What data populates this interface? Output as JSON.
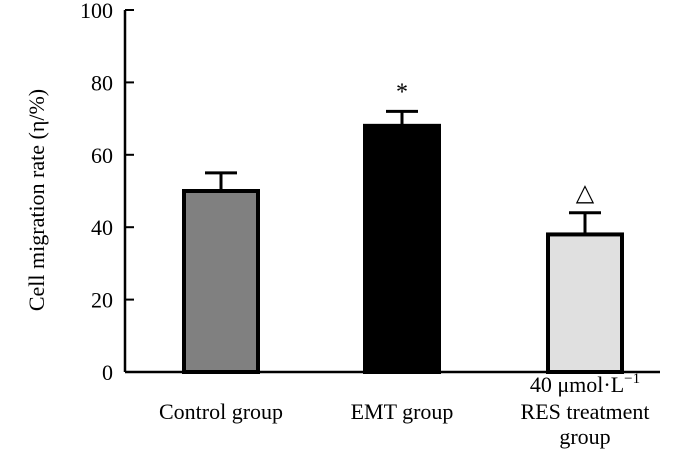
{
  "chart_data": {
    "type": "bar",
    "title": "",
    "ylabel": "Cell migration rate (η/%)",
    "xlabel": "",
    "ylim": [
      0,
      100
    ],
    "yticks": [
      0,
      20,
      40,
      60,
      80,
      100
    ],
    "categories": [
      [
        "Control group"
      ],
      [
        "EMT group"
      ],
      [
        "40 μmol·L",
        "RES treatment",
        "group"
      ]
    ],
    "unit_superscript": "−1",
    "values": [
      50,
      68,
      38
    ],
    "errors": [
      5,
      4,
      6
    ],
    "significance_marks": [
      "",
      "*",
      "△"
    ],
    "colors": [
      "#808080",
      "#000000",
      "#e0e0e0"
    ]
  }
}
